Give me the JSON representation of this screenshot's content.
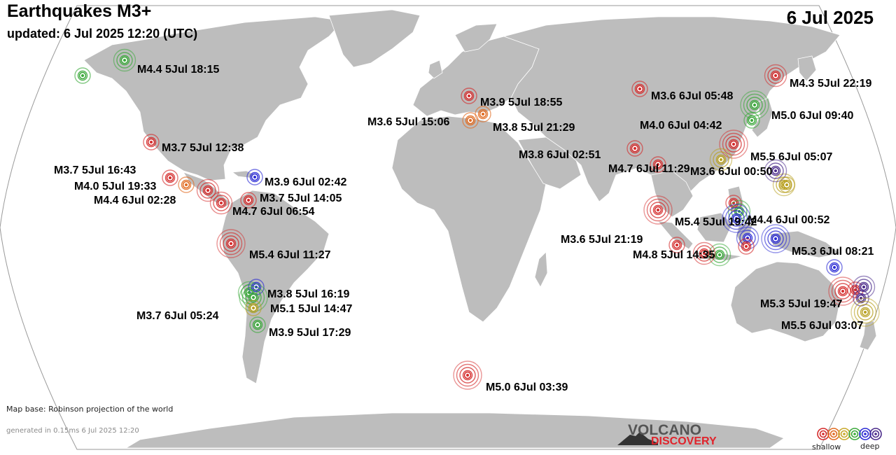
{
  "header": {
    "title": "Earthquakes M3+",
    "updated": "updated:  6 Jul 2025 12:20 (UTC)",
    "date": "6 Jul 2025"
  },
  "footer": {
    "map_base": "Map base: Robinson projection of the world",
    "generated": "generated in 0.15ms  6 Jul 2025 12:20"
  },
  "logo": {
    "line1": "VOLCANO",
    "line2": "DISCOVERY"
  },
  "legend": {
    "shallow_label": "shallow",
    "deep_label": "deep",
    "depth_colors": [
      "#d42a2a",
      "#e06a20",
      "#c8a82a",
      "#3aa83a",
      "#2a2ad4",
      "#4a2a8a"
    ]
  },
  "colors": {
    "ocean": "#ffffff",
    "land": "#bdbdbd",
    "map_outline": "#9a9a9a"
  },
  "quakes": [
    {
      "label": "M4.4  5Jul 18:15",
      "depth": "green"
    },
    {
      "label": "M4.3  5Jul 22:19",
      "depth": "red"
    },
    {
      "label": "M3.6  6Jul 05:48",
      "depth": "red"
    },
    {
      "label": "M5.0  6Jul 09:40",
      "depth": "green"
    },
    {
      "label": "M4.0  6Jul 04:42",
      "depth": "green"
    },
    {
      "label": "M3.9  5Jul 18:55",
      "depth": "red"
    },
    {
      "label": "M3.6  5Jul 15:06",
      "depth": "orange"
    },
    {
      "label": "M3.8  5Jul 21:29",
      "depth": "orange"
    },
    {
      "label": "M3.7  5Jul 12:38",
      "depth": "red"
    },
    {
      "label": "M3.8  6Jul 02:51",
      "depth": "red"
    },
    {
      "label": "M5.5  6Jul 05:07",
      "depth": "red"
    },
    {
      "label": "M4.7  6Jul 11:29",
      "depth": "red"
    },
    {
      "label": "M3.6  6Jul 00:50",
      "depth": "yellow"
    },
    {
      "label": "M3.7  5Jul 16:43",
      "depth": "red"
    },
    {
      "label": "M3.9  6Jul 02:42",
      "depth": "blue"
    },
    {
      "label": "M4.0  5Jul 19:33",
      "depth": "orange"
    },
    {
      "label": "M3.7  5Jul 14:05",
      "depth": "red"
    },
    {
      "label": "M4.4  6Jul 02:28",
      "depth": "red"
    },
    {
      "label": "M4.7  6Jul 06:54",
      "depth": "red"
    },
    {
      "label": "M5.4  5Jul 19:42",
      "depth": "red"
    },
    {
      "label": "M4.4  6Jul 00:52",
      "depth": "blue"
    },
    {
      "label": "M5.4  6Jul 11:27",
      "depth": "red"
    },
    {
      "label": "M3.6  5Jul 21:19",
      "depth": "red"
    },
    {
      "label": "M4.8  5Jul 14:35",
      "depth": "red"
    },
    {
      "label": "M5.3  6Jul 08:21",
      "depth": "blue"
    },
    {
      "label": "M3.8  5Jul 16:19",
      "depth": "blue"
    },
    {
      "label": "M5.1  5Jul 14:47",
      "depth": "green"
    },
    {
      "label": "M3.7  6Jul 05:24",
      "depth": "yellow"
    },
    {
      "label": "M3.9  5Jul 17:29",
      "depth": "green"
    },
    {
      "label": "M5.3  5Jul 19:47",
      "depth": "red"
    },
    {
      "label": "M5.5  6Jul 03:07",
      "depth": "yellow"
    },
    {
      "label": "M5.0  6Jul 03:39",
      "depth": "red"
    }
  ]
}
